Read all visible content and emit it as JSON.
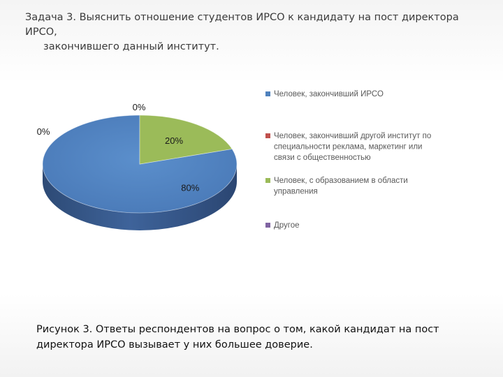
{
  "heading": {
    "line1": "Задача 3. Выяснить отношение студентов ИРСО к кандидату на пост директора ИРСО,",
    "line2": "закончившего данный институт."
  },
  "caption": {
    "line1": "Рисунок 3. Ответы респондентов на вопрос о том, какой кандидат на пост",
    "line2": "директора ИРСО вызывает у них большее доверие."
  },
  "chart_data": {
    "type": "pie",
    "style": "3d",
    "title": "",
    "slices": [
      {
        "label": "Человек, закончивший ИРСО",
        "legend_lines": [
          "Человек, закончивший ИРСО"
        ],
        "value": 80,
        "value_label": "80%",
        "color": "#4f81bd"
      },
      {
        "label": "Человек, закончивший другой институт по специальности реклама, маркетинг или связи с общественностью",
        "legend_lines": [
          "Человек, закончивший другой институт по",
          "специальности реклама, маркетинг или",
          "связи с общественностью"
        ],
        "value": 0,
        "value_label": "0%",
        "color": "#c0504d"
      },
      {
        "label": "Человек, с образованием  в области управления",
        "legend_lines": [
          "Человек, с образованием  в области",
          "управления"
        ],
        "value": 20,
        "value_label": "20%",
        "color": "#9bbb59"
      },
      {
        "label": "Другое",
        "legend_lines": [
          "Другое"
        ],
        "value": 0,
        "value_label": "0%",
        "color": "#8064a2"
      }
    ],
    "legend_position": "right"
  }
}
